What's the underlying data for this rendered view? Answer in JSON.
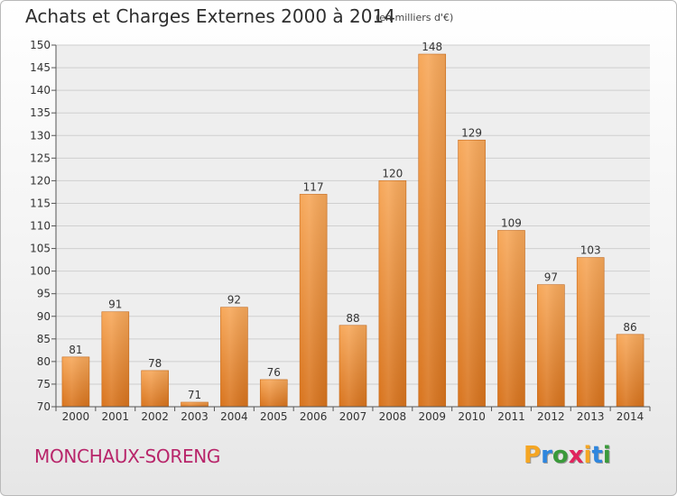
{
  "chart_data": {
    "type": "bar",
    "title": "Achats et Charges Externes 2000 à 2014",
    "unit_label": "(en milliers d'€)",
    "categories": [
      "2000",
      "2001",
      "2002",
      "2003",
      "2004",
      "2005",
      "2006",
      "2007",
      "2008",
      "2009",
      "2010",
      "2011",
      "2012",
      "2013",
      "2014"
    ],
    "values": [
      81,
      91,
      78,
      71,
      92,
      76,
      117,
      88,
      120,
      148,
      129,
      109,
      97,
      103,
      86
    ],
    "ylim": [
      70,
      150
    ],
    "yticks": [
      70,
      75,
      80,
      85,
      90,
      95,
      100,
      105,
      110,
      115,
      120,
      125,
      130,
      135,
      140,
      145,
      150
    ],
    "grid": true,
    "bar_color": "#e8852f"
  },
  "footer": {
    "commune": "MONCHAUX-SORENG",
    "logo_letters": [
      "P",
      "r",
      "o",
      "x",
      "i",
      "t",
      "i"
    ],
    "logo_colors": [
      "#f5a623",
      "#2e86de",
      "#3a9a3a",
      "#e0245e",
      "#f5a623",
      "#2e86de",
      "#3a9a3a"
    ]
  }
}
